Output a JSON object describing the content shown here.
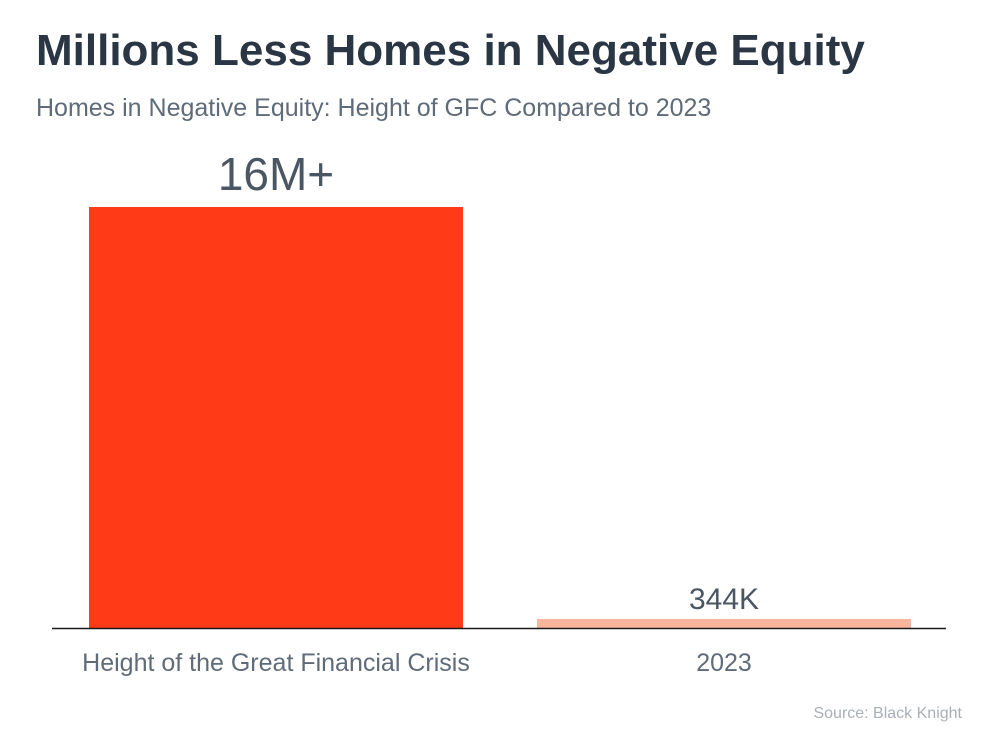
{
  "header": {
    "title": "Millions Less Homes in Negative Equity",
    "subtitle": "Homes in Negative Equity: Height of GFC Compared to 2023"
  },
  "chart_data": {
    "type": "bar",
    "title": "Millions Less Homes in Negative Equity",
    "subtitle": "Homes in Negative Equity: Height of GFC Compared to 2023",
    "categories": [
      "Height of the Great Financial Crisis",
      "2023"
    ],
    "values": [
      16000000,
      344000
    ],
    "data_labels": [
      "16M+",
      "344K"
    ],
    "bar_colors": [
      "#ff3b17",
      "#f7b59c"
    ],
    "xlabel": "",
    "ylabel": "",
    "ylim": [
      0,
      16000000
    ],
    "grid": false,
    "legend": "none"
  },
  "footer": {
    "source": "Source: Black Knight"
  },
  "colors": {
    "title": "#2b3644",
    "subtitle": "#5f6b78",
    "axis": "#1a1a1a",
    "label": "#4a5663",
    "source": "#a9afb6"
  }
}
